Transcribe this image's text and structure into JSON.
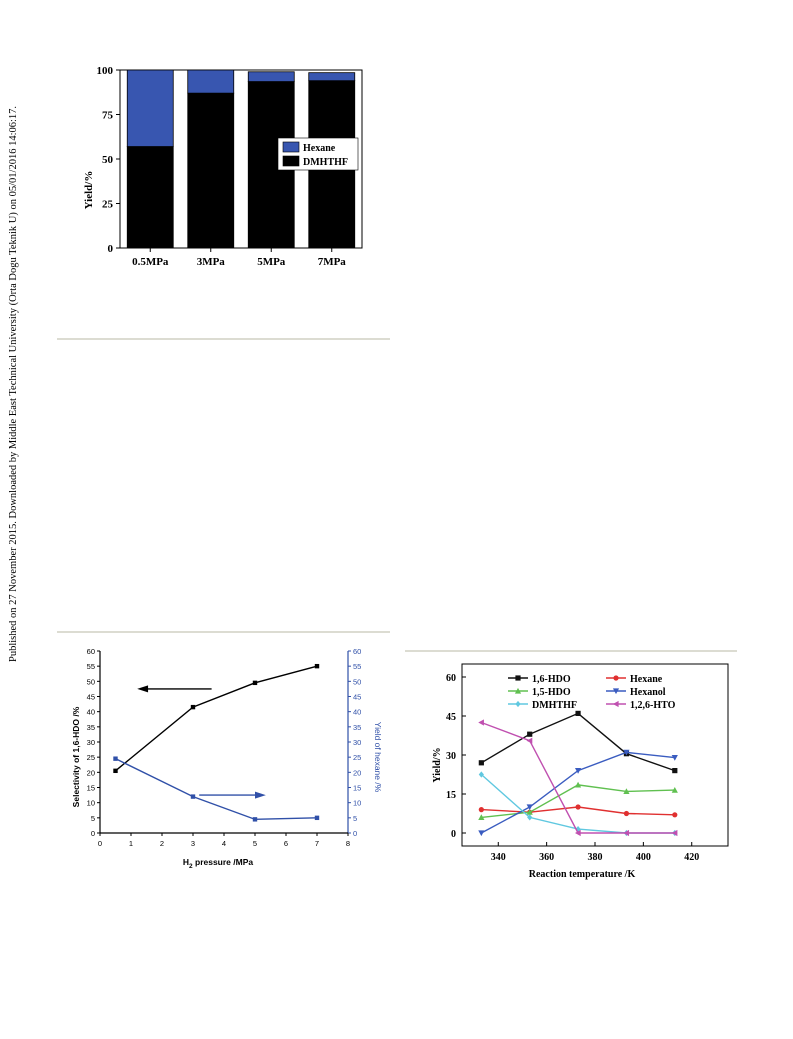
{
  "watermark": {
    "text": "Published on 27 November 2015. Downloaded by Middle East Technical University (Orta Dogu Teknik U) on 05/01/2016 14:06:17."
  },
  "chart_data": [
    {
      "type": "bar",
      "stacked": true,
      "categories": [
        "0.5MPa",
        "3MPa",
        "5MPa",
        "7MPa"
      ],
      "series": [
        {
          "name": "DMHTHF",
          "values": [
            57,
            87,
            93.5,
            94
          ],
          "color": "#000000"
        },
        {
          "name": "Hexane",
          "values": [
            43,
            13,
            5.5,
            4.5
          ],
          "color": "#3856b0"
        }
      ],
      "ylabel": "Yield/%",
      "xlabel": "",
      "ylim": [
        0,
        100
      ],
      "yticks": [
        "0",
        "25",
        "50",
        "75",
        "100"
      ],
      "legend": [
        "Hexane",
        "DMHTHF"
      ],
      "legend_position": "right"
    },
    {
      "type": "line",
      "x": [
        0.5,
        3,
        5,
        7
      ],
      "series": [
        {
          "name": "",
          "axis": "left",
          "values": [
            20.5,
            41.5,
            49.5,
            55
          ],
          "color": "#000000"
        },
        {
          "name": "",
          "axis": "right",
          "values": [
            24.5,
            12,
            4.5,
            5
          ],
          "color": "#3050a8"
        }
      ],
      "xlabel_main": "H",
      "xlabel_sub": "2",
      "xlabel_rest": " pressure /MPa",
      "ylabel_left": "Selectivity of 1,6-HDO /%",
      "ylabel_right": "Yield of hexane /%",
      "xlim": [
        0,
        8
      ],
      "ylim": [
        0,
        60
      ],
      "xticks": [
        "0",
        "1",
        "2",
        "3",
        "4",
        "5",
        "6",
        "7",
        "8"
      ],
      "yticks": [
        "0",
        "5",
        "10",
        "15",
        "20",
        "25",
        "30",
        "35",
        "40",
        "45",
        "50",
        "55",
        "60"
      ]
    },
    {
      "type": "line",
      "x": [
        333,
        353,
        373,
        393,
        413
      ],
      "series": [
        {
          "name": "1,6-HDO",
          "values": [
            27,
            38,
            46,
            30.5,
            24
          ],
          "color": "#111111",
          "marker": "square"
        },
        {
          "name": "Hexane",
          "values": [
            9,
            8,
            10,
            7.5,
            7
          ],
          "color": "#e03030",
          "marker": "circle"
        },
        {
          "name": "1,5-HDO",
          "values": [
            6,
            8,
            18.5,
            16,
            16.5
          ],
          "color": "#60c050",
          "marker": "triangle-up"
        },
        {
          "name": "Hexanol",
          "values": [
            0,
            10,
            24,
            31,
            29
          ],
          "color": "#3a5cc0",
          "marker": "triangle-down"
        },
        {
          "name": "DMHTHF",
          "values": [
            22.5,
            6,
            1.5,
            0,
            0
          ],
          "color": "#60c8e0",
          "marker": "diamond"
        },
        {
          "name": "1,2,6-HTO",
          "values": [
            42.5,
            35.5,
            0,
            0,
            0
          ],
          "color": "#c050b0",
          "marker": "triangle-left"
        }
      ],
      "xlabel": "Reaction temperature /K",
      "ylabel": "Yield/%",
      "xlim": [
        325,
        435
      ],
      "ylim": [
        -5,
        65
      ],
      "xticks": [
        "340",
        "360",
        "380",
        "400",
        "420"
      ],
      "yticks": [
        "0",
        "15",
        "30",
        "45",
        "60"
      ],
      "legend_position": "top"
    }
  ]
}
